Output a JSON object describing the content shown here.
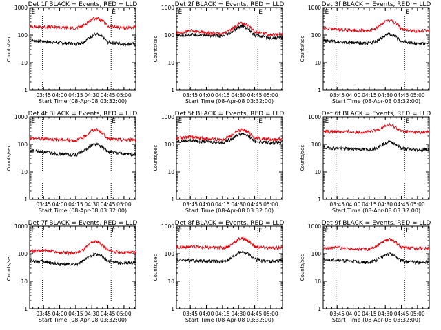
{
  "colors": {
    "events": "#000000",
    "lld": "#e8000b",
    "axes": "#000000",
    "background": "#ffffff"
  },
  "chart_data": [
    {
      "type": "line",
      "title": "Det 1f BLACK = Events, RED = LLD",
      "xlabel": "Start Time (08-Apr-08 03:32:00)",
      "ylabel": "Counts/sec",
      "xlim": [
        "03:32:00",
        "05:11:00"
      ],
      "ylim": [
        1,
        1000
      ],
      "yscale": "log",
      "x_ticks": [
        "03:45",
        "04:00",
        "04:15",
        "04:30",
        "04:45",
        "05:00"
      ],
      "y_ticks": [
        "1",
        "10",
        "100",
        "1000"
      ],
      "vertical_lines": [
        "03:44",
        "04:48"
      ],
      "marker_labels": [
        {
          "text": "E",
          "at": "03:33"
        },
        {
          "text": "E",
          "at": "04:48"
        }
      ],
      "x": [
        "03:32",
        "03:45",
        "04:00",
        "04:15",
        "04:22",
        "04:30",
        "04:34",
        "04:40",
        "04:45",
        "05:00",
        "05:10"
      ],
      "series": [
        {
          "name": "Events",
          "color": "black",
          "values": [
            65,
            60,
            52,
            48,
            55,
            95,
            110,
            85,
            55,
            47,
            48
          ]
        },
        {
          "name": "LLD",
          "color": "red",
          "values": [
            205,
            200,
            190,
            178,
            220,
            380,
            420,
            330,
            210,
            185,
            190
          ]
        }
      ]
    },
    {
      "type": "line",
      "title": "Det 2f BLACK = Events, RED = LLD",
      "xlabel": "Start Time (08-Apr-08 03:32:00)",
      "ylabel": "Counts/sec",
      "xlim": [
        "03:32:00",
        "05:11:00"
      ],
      "ylim": [
        1,
        1000
      ],
      "yscale": "log",
      "x_ticks": [
        "03:45",
        "04:00",
        "04:15",
        "04:30",
        "04:45",
        "05:00"
      ],
      "y_ticks": [
        "1",
        "10",
        "100",
        "1000"
      ],
      "vertical_lines": [
        "03:44",
        "04:48"
      ],
      "marker_labels": [
        {
          "text": "E",
          "at": "03:33"
        },
        {
          "text": "E",
          "at": "04:48"
        }
      ],
      "x": [
        "03:32",
        "03:45",
        "04:00",
        "04:15",
        "04:22",
        "04:30",
        "04:34",
        "04:40",
        "04:45",
        "05:00",
        "05:10"
      ],
      "series": [
        {
          "name": "Events",
          "color": "black",
          "values": [
            92,
            105,
            98,
            90,
            115,
            190,
            215,
            165,
            100,
            78,
            82
          ]
        },
        {
          "name": "LLD",
          "color": "red",
          "values": [
            118,
            145,
            125,
            112,
            150,
            250,
            275,
            215,
            130,
            102,
            110
          ]
        }
      ]
    },
    {
      "type": "line",
      "title": "Det 3f BLACK = Events, RED = LLD",
      "xlabel": "Start Time (08-Apr-08 03:32:00)",
      "ylabel": "Counts/sec",
      "xlim": [
        "03:32:00",
        "05:11:00"
      ],
      "ylim": [
        1,
        1000
      ],
      "yscale": "log",
      "x_ticks": [
        "03:45",
        "04:00",
        "04:15",
        "04:30",
        "04:45",
        "05:00"
      ],
      "y_ticks": [
        "1",
        "10",
        "100",
        "1000"
      ],
      "vertical_lines": [
        "03:44",
        "04:48"
      ],
      "marker_labels": [
        {
          "text": "E",
          "at": "03:33"
        },
        {
          "text": "E",
          "at": "04:48"
        }
      ],
      "x": [
        "03:32",
        "03:45",
        "04:00",
        "04:15",
        "04:22",
        "04:30",
        "04:34",
        "04:40",
        "04:45",
        "05:00",
        "05:10"
      ],
      "series": [
        {
          "name": "Events",
          "color": "black",
          "values": [
            62,
            58,
            52,
            50,
            60,
            100,
            110,
            85,
            60,
            50,
            48
          ]
        },
        {
          "name": "LLD",
          "color": "red",
          "values": [
            175,
            165,
            150,
            145,
            180,
            320,
            345,
            270,
            165,
            140,
            150
          ]
        }
      ]
    },
    {
      "type": "line",
      "title": "Det 4f BLACK = Events, RED = LLD",
      "xlabel": "Start Time (08-Apr-08 03:32:00)",
      "ylabel": "Counts/sec",
      "xlim": [
        "03:32:00",
        "05:11:00"
      ],
      "ylim": [
        1,
        1000
      ],
      "yscale": "log",
      "x_ticks": [
        "03:45",
        "04:00",
        "04:15",
        "04:30",
        "04:45",
        "05:00"
      ],
      "y_ticks": [
        "1",
        "10",
        "100",
        "1000"
      ],
      "vertical_lines": [
        "03:44",
        "04:48"
      ],
      "marker_labels": [
        {
          "text": "E",
          "at": "03:33"
        },
        {
          "text": "E",
          "at": "04:48"
        }
      ],
      "x": [
        "03:32",
        "03:45",
        "04:00",
        "04:15",
        "04:22",
        "04:30",
        "04:34",
        "04:40",
        "04:45",
        "05:00",
        "05:10"
      ],
      "series": [
        {
          "name": "Events",
          "color": "black",
          "values": [
            60,
            52,
            45,
            42,
            55,
            95,
            105,
            80,
            55,
            45,
            42
          ]
        },
        {
          "name": "LLD",
          "color": "red",
          "values": [
            170,
            160,
            150,
            140,
            175,
            320,
            350,
            260,
            160,
            145,
            150
          ]
        }
      ]
    },
    {
      "type": "line",
      "title": "Det 5f BLACK = Events, RED = LLD",
      "xlabel": "Start Time (08-Apr-08 03:32:00)",
      "ylabel": "Counts/sec",
      "xlim": [
        "03:32:00",
        "05:11:00"
      ],
      "ylim": [
        1,
        1000
      ],
      "yscale": "log",
      "x_ticks": [
        "03:45",
        "04:00",
        "04:15",
        "04:30",
        "04:45",
        "05:00"
      ],
      "y_ticks": [
        "1",
        "10",
        "100",
        "1000"
      ],
      "vertical_lines": [
        "03:44",
        "04:48"
      ],
      "marker_labels": [
        {
          "text": "E",
          "at": "03:33"
        },
        {
          "text": "E",
          "at": "04:48"
        }
      ],
      "x": [
        "03:32",
        "03:45",
        "04:00",
        "04:15",
        "04:22",
        "04:30",
        "04:34",
        "04:40",
        "04:45",
        "05:00",
        "05:10"
      ],
      "series": [
        {
          "name": "Events",
          "color": "black",
          "values": [
            128,
            140,
            125,
            118,
            150,
            230,
            250,
            195,
            130,
            115,
            120
          ]
        },
        {
          "name": "LLD",
          "color": "red",
          "values": [
            165,
            185,
            162,
            150,
            195,
            320,
            345,
            270,
            170,
            150,
            160
          ]
        }
      ]
    },
    {
      "type": "line",
      "title": "Det 6f BLACK = Events, RED = LLD",
      "xlabel": "Start Time (08-Apr-08 03:32:00)",
      "ylabel": "Counts/sec",
      "xlim": [
        "03:32:00",
        "05:11:00"
      ],
      "ylim": [
        1,
        1000
      ],
      "yscale": "log",
      "x_ticks": [
        "03:45",
        "04:00",
        "04:15",
        "04:30",
        "04:45",
        "05:00"
      ],
      "y_ticks": [
        "1",
        "10",
        "100",
        "1000"
      ],
      "vertical_lines": [
        "03:44",
        "04:48"
      ],
      "marker_labels": [
        {
          "text": "E",
          "at": "03:33"
        },
        {
          "text": "E",
          "at": "04:48"
        }
      ],
      "x": [
        "03:32",
        "03:45",
        "04:00",
        "04:15",
        "04:22",
        "04:30",
        "04:34",
        "04:40",
        "04:45",
        "05:00",
        "05:10"
      ],
      "series": [
        {
          "name": "Events",
          "color": "black",
          "values": [
            75,
            72,
            68,
            65,
            75,
            115,
            125,
            100,
            72,
            62,
            65
          ]
        },
        {
          "name": "LLD",
          "color": "red",
          "values": [
            295,
            295,
            285,
            280,
            330,
            470,
            500,
            410,
            300,
            270,
            280
          ]
        }
      ]
    },
    {
      "type": "line",
      "title": "Det 7f BLACK = Events, RED = LLD",
      "xlabel": "Start Time (08-Apr-08 03:32:00)",
      "ylabel": "Counts/sec",
      "xlim": [
        "03:32:00",
        "05:11:00"
      ],
      "ylim": [
        1,
        1000
      ],
      "yscale": "log",
      "x_ticks": [
        "03:45",
        "04:00",
        "04:15",
        "04:30",
        "04:45",
        "05:00"
      ],
      "y_ticks": [
        "1",
        "10",
        "100",
        "1000"
      ],
      "vertical_lines": [
        "03:44",
        "04:48"
      ],
      "marker_labels": [
        {
          "text": "E",
          "at": "03:33"
        },
        {
          "text": "E",
          "at": "04:48"
        }
      ],
      "x": [
        "03:32",
        "03:45",
        "04:00",
        "04:15",
        "04:22",
        "04:30",
        "04:34",
        "04:40",
        "04:45",
        "05:00",
        "05:10"
      ],
      "series": [
        {
          "name": "Events",
          "color": "black",
          "values": [
            55,
            52,
            42,
            40,
            55,
            90,
            100,
            80,
            55,
            45,
            48
          ]
        },
        {
          "name": "LLD",
          "color": "red",
          "values": [
            120,
            130,
            110,
            105,
            140,
            260,
            280,
            215,
            130,
            108,
            115
          ]
        }
      ]
    },
    {
      "type": "line",
      "title": "Det 8f BLACK = Events, RED = LLD",
      "xlabel": "Start Time (08-Apr-08 03:32:00)",
      "ylabel": "Counts/sec",
      "xlim": [
        "03:32:00",
        "05:11:00"
      ],
      "ylim": [
        1,
        1000
      ],
      "yscale": "log",
      "x_ticks": [
        "03:45",
        "04:00",
        "04:15",
        "04:30",
        "04:45",
        "05:00"
      ],
      "y_ticks": [
        "1",
        "10",
        "100",
        "1000"
      ],
      "vertical_lines": [
        "03:44",
        "04:48"
      ],
      "marker_labels": [
        {
          "text": "E",
          "at": "03:33"
        },
        {
          "text": "E",
          "at": "04:48"
        }
      ],
      "x": [
        "03:32",
        "03:45",
        "04:00",
        "04:15",
        "04:22",
        "04:30",
        "04:34",
        "04:40",
        "04:45",
        "05:00",
        "05:10"
      ],
      "series": [
        {
          "name": "Events",
          "color": "black",
          "values": [
            60,
            58,
            55,
            52,
            65,
            110,
            122,
            95,
            62,
            52,
            58
          ]
        },
        {
          "name": "LLD",
          "color": "red",
          "values": [
            175,
            180,
            170,
            165,
            200,
            340,
            360,
            280,
            180,
            160,
            168
          ]
        }
      ]
    },
    {
      "type": "line",
      "title": "Det 9f BLACK = Events, RED = LLD",
      "xlabel": "Start Time (08-Apr-08 03:32:00)",
      "ylabel": "Counts/sec",
      "xlim": [
        "03:32:00",
        "05:11:00"
      ],
      "ylim": [
        1,
        1000
      ],
      "yscale": "log",
      "x_ticks": [
        "03:45",
        "04:00",
        "04:15",
        "04:30",
        "04:45",
        "05:00"
      ],
      "y_ticks": [
        "1",
        "10",
        "100",
        "1000"
      ],
      "vertical_lines": [
        "03:44",
        "04:48"
      ],
      "marker_labels": [
        {
          "text": "E",
          "at": "03:33"
        },
        {
          "text": "E",
          "at": "04:48"
        }
      ],
      "x": [
        "03:32",
        "03:45",
        "04:00",
        "04:15",
        "04:22",
        "04:30",
        "04:34",
        "04:40",
        "04:45",
        "05:00",
        "05:10"
      ],
      "series": [
        {
          "name": "Events",
          "color": "black",
          "values": [
            58,
            60,
            52,
            48,
            60,
            92,
            102,
            80,
            55,
            48,
            50
          ]
        },
        {
          "name": "LLD",
          "color": "red",
          "values": [
            160,
            170,
            150,
            145,
            185,
            300,
            330,
            255,
            170,
            150,
            158
          ]
        }
      ]
    }
  ]
}
